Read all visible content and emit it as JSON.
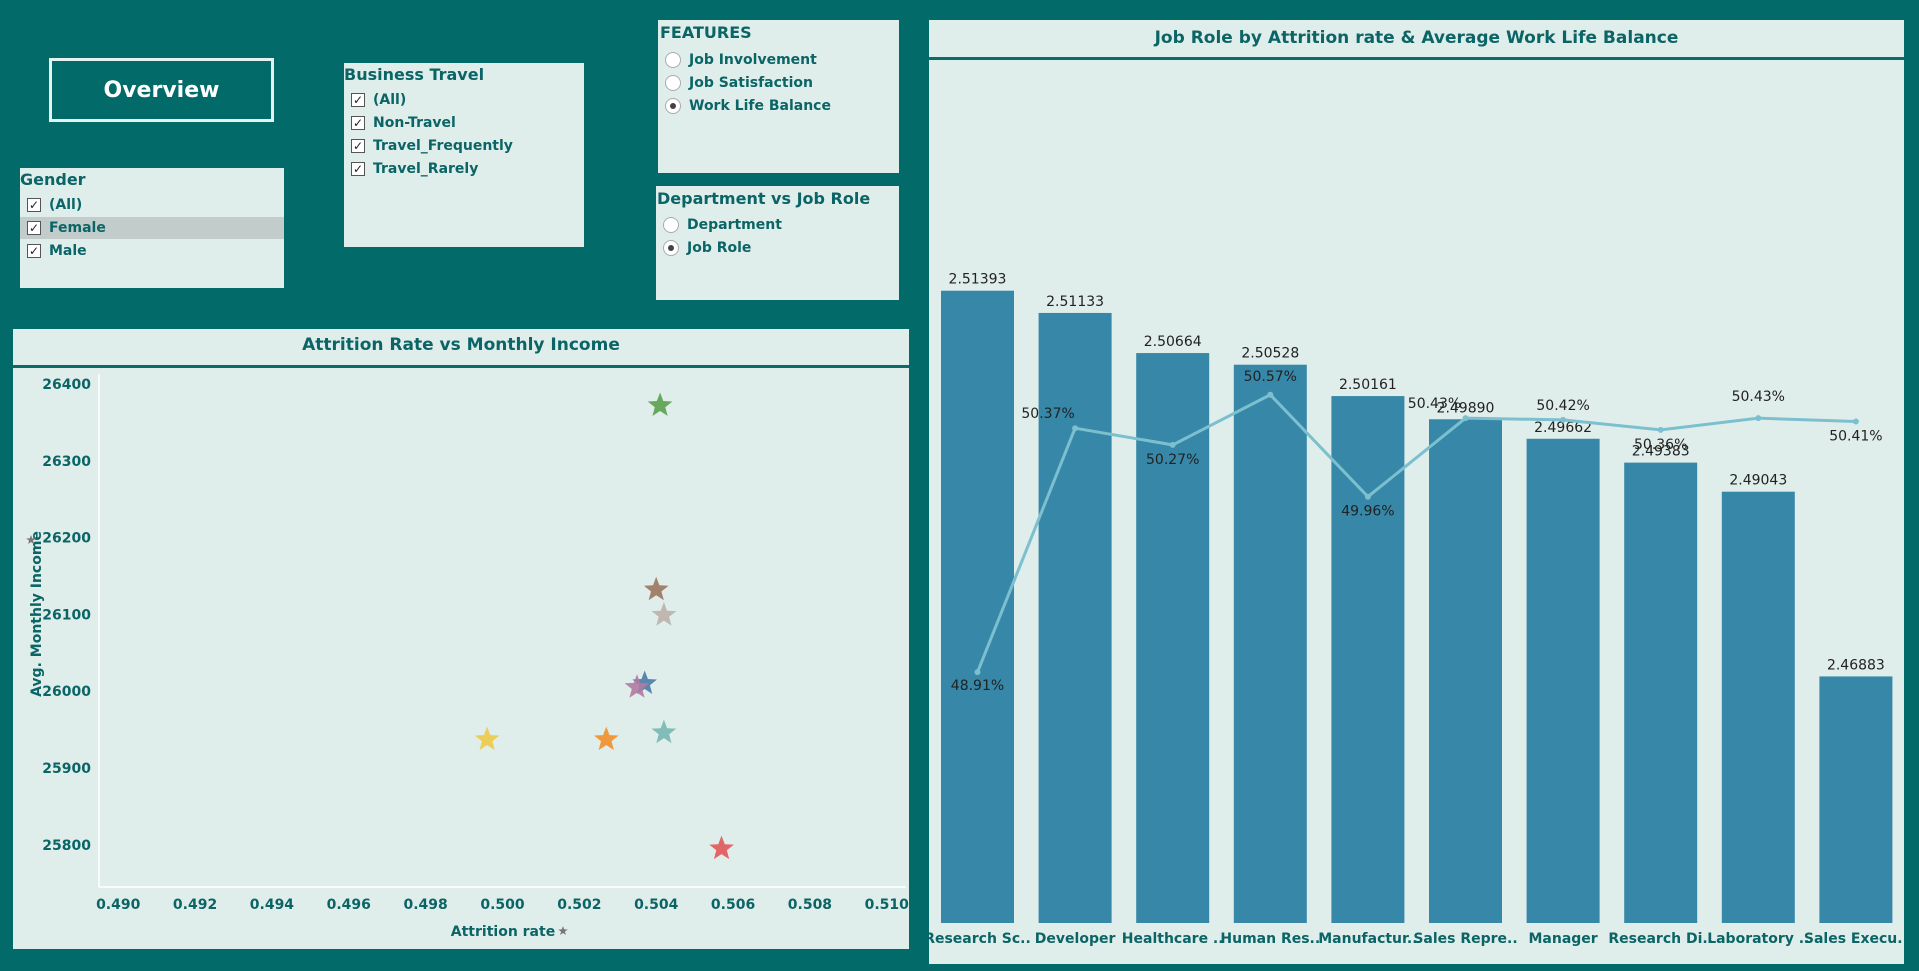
{
  "overview_label": "Overview",
  "gender": {
    "title": "Gender",
    "options": [
      {
        "label": "(All)",
        "checked": true
      },
      {
        "label": "Female",
        "checked": true,
        "highlighted": true
      },
      {
        "label": "Male",
        "checked": true
      }
    ]
  },
  "business_travel": {
    "title": "Business Travel",
    "options": [
      {
        "label": "(All)",
        "checked": true
      },
      {
        "label": "Non-Travel",
        "checked": true
      },
      {
        "label": "Travel_Frequently",
        "checked": true
      },
      {
        "label": "Travel_Rarely",
        "checked": true
      }
    ]
  },
  "features": {
    "title": "FEATURES",
    "options": [
      {
        "label": "Job Involvement",
        "selected": false
      },
      {
        "label": "Job Satisfaction",
        "selected": false
      },
      {
        "label": "Work Life Balance",
        "selected": true
      }
    ]
  },
  "dept_vs_role": {
    "title": "Department vs Job Role",
    "options": [
      {
        "label": "Department",
        "selected": false
      },
      {
        "label": "Job Role",
        "selected": true
      }
    ]
  },
  "chart_data": [
    {
      "type": "scatter",
      "title": "Attrition Rate vs Monthly Income",
      "xlabel": "Attrition rate",
      "ylabel": "Avg. Monthly Income",
      "xlim": [
        0.4895,
        0.5105
      ],
      "ylim": [
        25745,
        26413
      ],
      "xticks": [
        "0.490",
        "0.492",
        "0.494",
        "0.496",
        "0.498",
        "0.500",
        "0.502",
        "0.504",
        "0.506",
        "0.508",
        "0.510"
      ],
      "yticks": [
        "25800",
        "25900",
        "26000",
        "26100",
        "26200",
        "26300",
        "26400"
      ],
      "points": [
        {
          "x": 0.5041,
          "y": 26372,
          "color": "#59a14f"
        },
        {
          "x": 0.504,
          "y": 26132,
          "color": "#9c755f"
        },
        {
          "x": 0.5042,
          "y": 26099,
          "color": "#bab0ac"
        },
        {
          "x": 0.5037,
          "y": 26010,
          "color": "#4e79a7"
        },
        {
          "x": 0.5035,
          "y": 26005,
          "color": "#b07aa1"
        },
        {
          "x": 0.4996,
          "y": 25937,
          "color": "#edc948"
        },
        {
          "x": 0.5027,
          "y": 25937,
          "color": "#f28e2b"
        },
        {
          "x": 0.5042,
          "y": 25946,
          "color": "#76b7b2"
        },
        {
          "x": 0.5057,
          "y": 25795,
          "color": "#e15759"
        }
      ]
    },
    {
      "type": "bar",
      "title": "Job Role by Attrition rate & Average  Work Life Balance",
      "categories": [
        "Research Sc..",
        "Developer",
        "Healthcare ..",
        "Human Res..",
        "Manufactur..",
        "Sales Repre..",
        "Manager",
        "Research Di..",
        "Laboratory ..",
        "Sales Execu.."
      ],
      "bar_labels": [
        "2.51393",
        "2.51133",
        "2.50664",
        "2.50528",
        "2.50161",
        "2.49890",
        "2.49662",
        "2.49383",
        "2.49043",
        "2.46883"
      ],
      "line_labels": [
        "48.91%",
        "50.37%",
        "50.27%",
        "50.57%",
        "49.96%",
        "50.43%",
        "50.42%",
        "50.36%",
        "50.43%",
        "50.41%"
      ],
      "series": [
        {
          "values": [
            2.51393,
            2.51133,
            2.50664,
            2.50528,
            2.50161,
            2.4989,
            2.49662,
            2.49383,
            2.49043,
            2.46883
          ],
          "color": "#3687a8"
        },
        {
          "values": [
            48.91,
            50.37,
            50.27,
            50.57,
            49.96,
            50.43,
            50.42,
            50.36,
            50.43,
            50.41
          ],
          "color": "#7cc0cf"
        }
      ],
      "bar_ylim": [
        2.44,
        2.5229
      ],
      "line_ylim": [
        48.57,
        50.82
      ]
    }
  ]
}
